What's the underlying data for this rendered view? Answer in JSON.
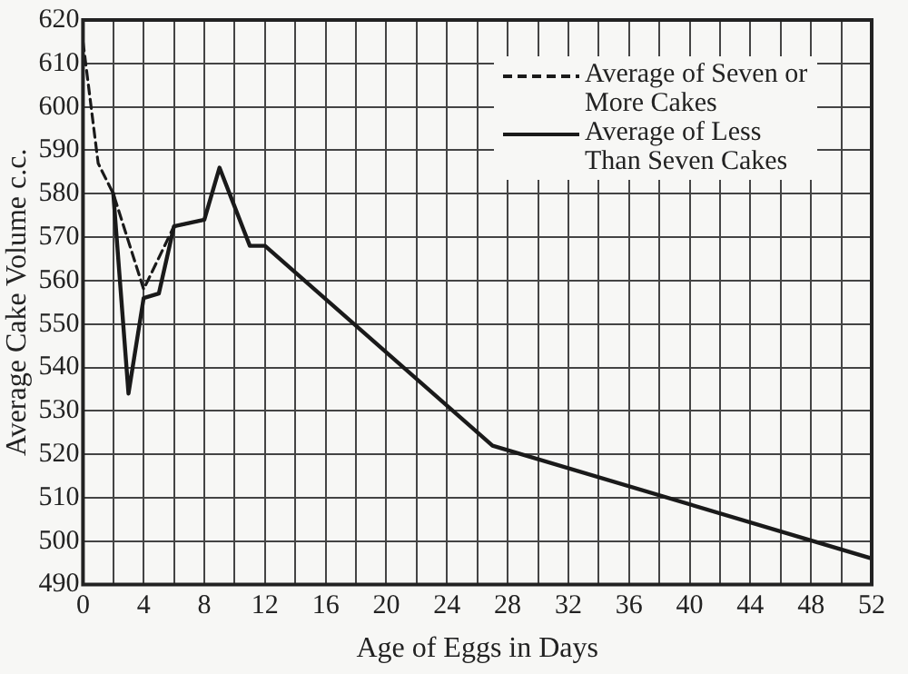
{
  "chart_data": {
    "type": "line",
    "xlabel": "Age of Eggs in Days",
    "ylabel": "Average Cake Volume c.c.",
    "xlim": [
      0,
      52
    ],
    "ylim": [
      490,
      620
    ],
    "xticks": [
      0,
      {
        "value": 2,
        "label": null
      },
      4,
      {
        "value": 6,
        "label": null
      },
      8,
      {
        "value": 10,
        "label": null
      },
      12,
      {
        "value": 14,
        "label": null
      },
      16,
      {
        "value": 18,
        "label": null
      },
      20,
      {
        "value": 22,
        "label": null
      },
      24,
      {
        "value": 26,
        "label": null
      },
      28,
      {
        "value": 30,
        "label": null
      },
      32,
      {
        "value": 34,
        "label": null
      },
      36,
      {
        "value": 38,
        "label": null
      },
      40,
      {
        "value": 42,
        "label": null
      },
      44,
      {
        "value": 46,
        "label": null
      },
      48,
      {
        "value": 50,
        "label": null
      },
      52
    ],
    "yticks": [
      490,
      500,
      510,
      520,
      530,
      540,
      550,
      560,
      570,
      580,
      590,
      600,
      610,
      620
    ],
    "grid": true,
    "legend": "top right",
    "marker": "none",
    "series": [
      {
        "name": "Average of Seven or More Cakes",
        "color": "#1a1a1a",
        "line_style": "dashed",
        "x": [
          0,
          1,
          2,
          4,
          6,
          8
        ],
        "values": [
          615,
          587,
          580,
          558,
          572.5,
          574
        ]
      },
      {
        "name": "Average of Less Than Seven Cakes",
        "color": "#1a1a1a",
        "line_style": "solid",
        "x": [
          2,
          3,
          4,
          5,
          6,
          8,
          9,
          11,
          12,
          27,
          52
        ],
        "values": [
          580,
          534,
          556,
          557,
          572.5,
          574,
          586,
          568,
          568,
          522,
          496
        ]
      }
    ]
  }
}
